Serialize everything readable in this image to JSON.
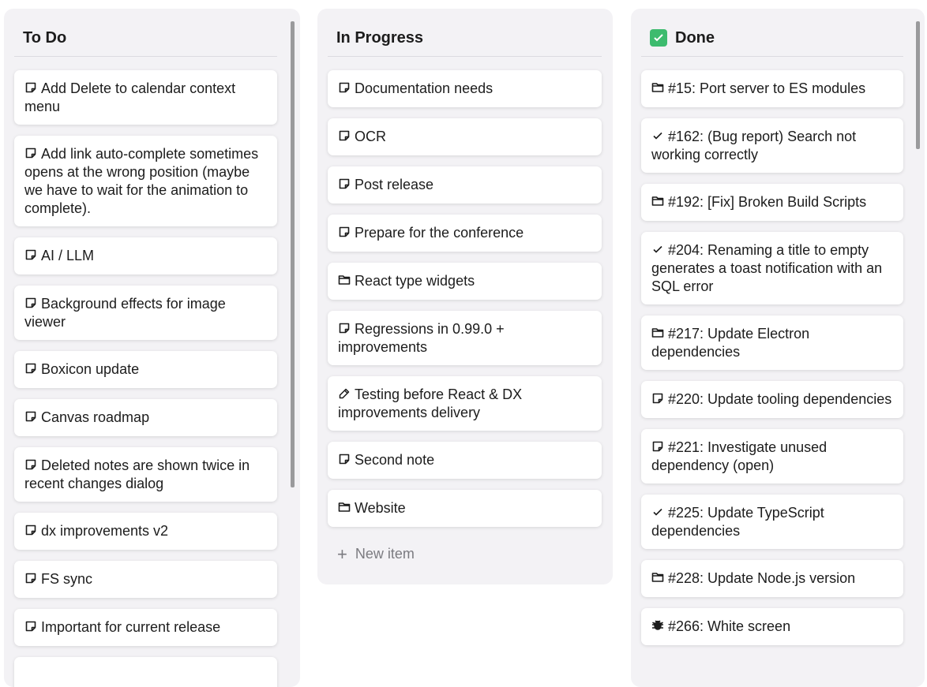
{
  "columns": [
    {
      "title": "To Do",
      "icon": "",
      "items": [
        {
          "icon": "note",
          "text": "Add Delete to calendar context menu"
        },
        {
          "icon": "note",
          "text": "Add link auto-complete sometimes opens at the wrong position (maybe we have to wait for the animation to complete)."
        },
        {
          "icon": "note",
          "text": "AI / LLM"
        },
        {
          "icon": "note",
          "text": "Background effects for image viewer"
        },
        {
          "icon": "note",
          "text": "Boxicon update"
        },
        {
          "icon": "note",
          "text": "Canvas roadmap"
        },
        {
          "icon": "note",
          "text": "Deleted notes are shown twice in recent changes dialog"
        },
        {
          "icon": "note",
          "text": "dx improvements v2"
        },
        {
          "icon": "note",
          "text": "FS sync"
        },
        {
          "icon": "note",
          "text": "Important for current release"
        }
      ]
    },
    {
      "title": "In Progress",
      "icon": "",
      "items": [
        {
          "icon": "note",
          "text": "Documentation needs"
        },
        {
          "icon": "note",
          "text": "OCR"
        },
        {
          "icon": "note",
          "text": "Post release"
        },
        {
          "icon": "note",
          "text": "Prepare for the conference"
        },
        {
          "icon": "folder",
          "text": "React type widgets"
        },
        {
          "icon": "note",
          "text": "Regressions in 0.99.0 + improvements"
        },
        {
          "icon": "pipette",
          "text": "Testing before React & DX improvements delivery"
        },
        {
          "icon": "note",
          "text": "Second note"
        },
        {
          "icon": "folder",
          "text": "Website"
        }
      ],
      "new_item_label": "New item"
    },
    {
      "title": "Done",
      "icon": "checkbox-green",
      "items": [
        {
          "icon": "folder",
          "text": "#15: Port server to ES modules"
        },
        {
          "icon": "check",
          "text": "#162: (Bug report) Search not working correctly"
        },
        {
          "icon": "folder",
          "text": "#192: [Fix] Broken Build Scripts"
        },
        {
          "icon": "check",
          "text": "#204: Renaming a title to empty generates a toast notification with an SQL error"
        },
        {
          "icon": "folder",
          "text": "#217: Update Electron dependencies"
        },
        {
          "icon": "note",
          "text": "#220: Update tooling dependencies"
        },
        {
          "icon": "note",
          "text": "#221: Investigate unused dependency (open)"
        },
        {
          "icon": "check",
          "text": "#225: Update TypeScript dependencies"
        },
        {
          "icon": "folder",
          "text": "#228: Update Node.js version"
        },
        {
          "icon": "bug",
          "text": "#266: White screen"
        }
      ]
    }
  ],
  "colors": {
    "column_bg": "#f3f2f5",
    "done_icon": "#3dbb6e"
  }
}
